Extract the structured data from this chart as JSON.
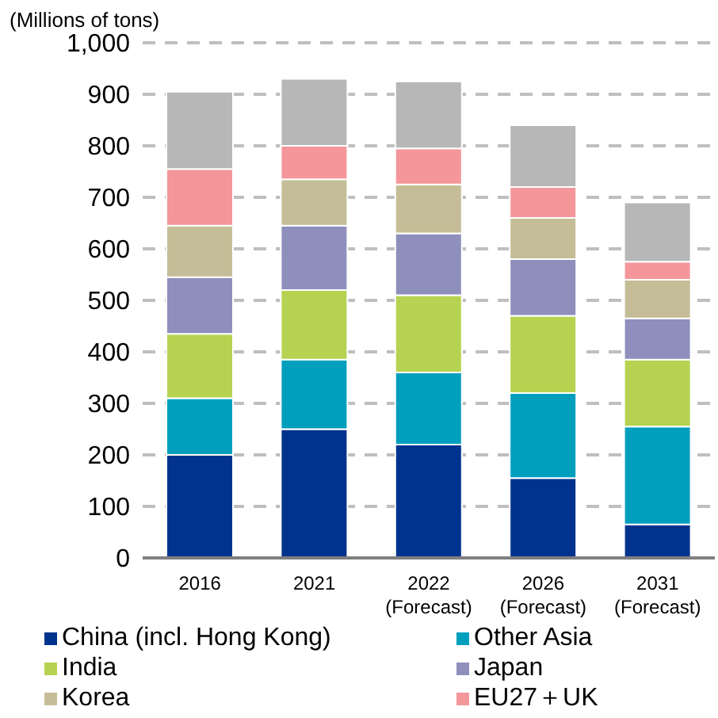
{
  "chart_data": {
    "type": "bar",
    "stacked": true,
    "ylabel": "(Millions of tons)",
    "categories": [
      "2016",
      "2021",
      "2022\n(Forecast)",
      "2026\n(Forecast)",
      "2031\n(Forecast)"
    ],
    "series": [
      {
        "name": "China (incl. Hong Kong)",
        "color": "#00338d",
        "values": [
          200,
          250,
          220,
          155,
          65
        ]
      },
      {
        "name": "Other Asia",
        "color": "#009fbd",
        "values": [
          110,
          135,
          140,
          165,
          190
        ]
      },
      {
        "name": "India",
        "color": "#b5d350",
        "values": [
          125,
          135,
          150,
          150,
          130
        ]
      },
      {
        "name": "Japan",
        "color": "#8e8fbc",
        "values": [
          110,
          125,
          120,
          110,
          80
        ]
      },
      {
        "name": "Korea",
        "color": "#c4bd97",
        "values": [
          100,
          90,
          95,
          80,
          75
        ]
      },
      {
        "name": "EU27＋UK",
        "color": "#f4969a",
        "values": [
          110,
          65,
          70,
          60,
          35
        ]
      },
      {
        "color": "#b7b7b7",
        "values": [
          150,
          130,
          130,
          120,
          115
        ]
      }
    ],
    "ylim": [
      0,
      1000
    ],
    "yticks": [
      0,
      100,
      200,
      300,
      400,
      500,
      600,
      700,
      800,
      900,
      {
        "value": 1000,
        "label": "1,000"
      }
    ],
    "grid": "y",
    "legend": "bottom"
  }
}
